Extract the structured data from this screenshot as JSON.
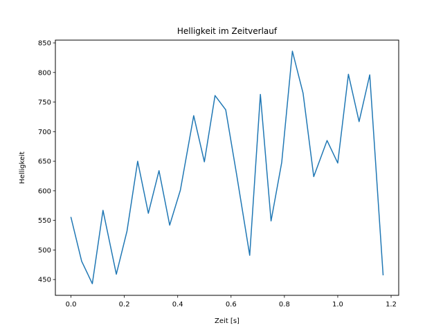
{
  "chart_data": {
    "type": "line",
    "title": "Helligkeit im Zeitverlauf",
    "xlabel": "Zeit [s]",
    "ylabel": "Helligkeit",
    "xlim": [
      -0.0585,
      1.2285
    ],
    "ylim": [
      423.3,
      854.7
    ],
    "xticks": [
      0.0,
      0.2,
      0.4,
      0.6,
      0.8,
      1.0,
      1.2
    ],
    "xtick_labels": [
      "0.0",
      "0.2",
      "0.4",
      "0.6",
      "0.8",
      "1.0",
      "1.2"
    ],
    "yticks": [
      450,
      500,
      550,
      600,
      650,
      700,
      750,
      800,
      850
    ],
    "ytick_labels": [
      "450",
      "500",
      "550",
      "600",
      "650",
      "700",
      "750",
      "800",
      "850"
    ],
    "grid": false,
    "line_color": "#1f77b4",
    "series": [
      {
        "x": [
          0.0,
          0.04,
          0.08,
          0.12,
          0.17,
          0.21,
          0.25,
          0.29,
          0.33,
          0.37,
          0.41,
          0.46,
          0.5,
          0.54,
          0.58,
          0.62,
          0.67,
          0.71,
          0.75,
          0.79,
          0.83,
          0.87,
          0.91,
          0.96,
          1.0,
          1.04,
          1.08,
          1.12,
          1.17
        ],
        "values": [
          555,
          481,
          443,
          567,
          459,
          532,
          650,
          562,
          634,
          542,
          601,
          727,
          649,
          761,
          737,
          630,
          491,
          763,
          549,
          648,
          836,
          765,
          624,
          685,
          647,
          797,
          717,
          796,
          458
        ]
      }
    ]
  }
}
